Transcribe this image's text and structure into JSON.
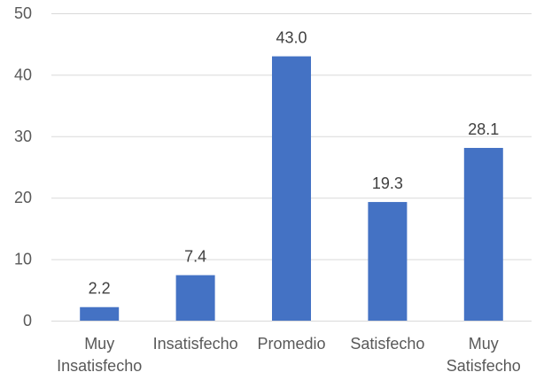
{
  "chart_data": {
    "type": "bar",
    "categories": [
      [
        "Muy",
        "Insatisfecho"
      ],
      [
        "Insatisfecho"
      ],
      [
        "Promedio"
      ],
      [
        "Satisfecho"
      ],
      [
        "Muy",
        "Satisfecho"
      ]
    ],
    "values": [
      2.2,
      7.4,
      43.0,
      19.3,
      28.1
    ],
    "data_labels": [
      "2.2",
      "7.4",
      "43.0",
      "19.3",
      "28.1"
    ],
    "y_ticks": [
      0,
      10,
      20,
      30,
      40,
      50
    ],
    "ylim": [
      0,
      50
    ],
    "bar_color": "#4472c4",
    "grid": true,
    "legend": "none"
  }
}
